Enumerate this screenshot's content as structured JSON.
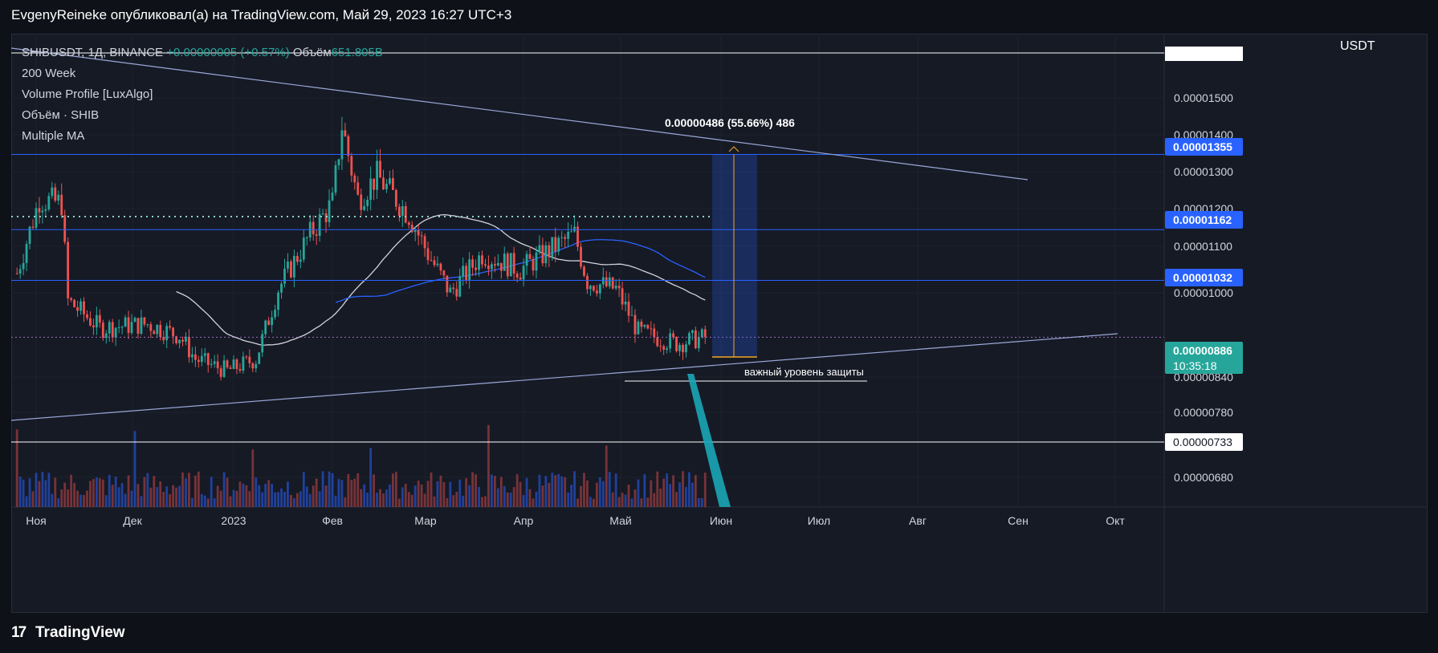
{
  "header": {
    "title": "EvgenyReineke опубликовал(а) на TradingView.com, Май 29, 2023 16:27 UTC+3"
  },
  "legend": {
    "symbol": "SHIBUSDT, 1Д, BINANCE",
    "change": "+0.00000005 (+0.57%)",
    "volume_label": "Объём",
    "volume_value": "651.805B",
    "indicators": [
      "200 Week",
      "Volume Profile [LuxAlgo]",
      "Объём · SHIB",
      "Multiple MA"
    ]
  },
  "price_axis": {
    "currency": "USDT",
    "ticks": [
      "0.00001500",
      "0.00001400",
      "0.00001300",
      "0.00001200",
      "0.00001100",
      "0.00001000",
      "0.00000840",
      "0.00000780",
      "0.00000680"
    ],
    "badges": [
      {
        "label": "0.00001355",
        "style": "blue"
      },
      {
        "label": "0.00001162",
        "style": "blue"
      },
      {
        "label": "0.00001032",
        "style": "blue"
      },
      {
        "label": "0.00000886",
        "style": "teal",
        "sub": "10:35:18"
      },
      {
        "label": "0.00000733",
        "style": "white"
      }
    ]
  },
  "time_axis": [
    "Ноя",
    "Дек",
    "2023",
    "Фев",
    "Мар",
    "Апр",
    "Май",
    "Июн",
    "Июл",
    "Авг",
    "Сен",
    "Окт"
  ],
  "annotations": {
    "measure": "0.00000486 (55.66%) 486",
    "support": "важный уровень защиты"
  },
  "footer": {
    "brand": "TradingView"
  },
  "colors": {
    "up": "#26a69a",
    "down": "#ef5350",
    "level": "#2962ff",
    "ma_white": "#d1d4dc",
    "ma_blue": "#2962ff",
    "bg": "#161a25"
  },
  "chart_data": {
    "type": "candlestick",
    "title": "SHIBUSDT, 1Д, BINANCE",
    "ylim": [
      6.5e-06,
      1.65e-05
    ],
    "horizontal_levels": [
      1.355e-05,
      1.162e-05,
      1.032e-05,
      8.86e-06,
      7.33e-06
    ],
    "anchors": [
      {
        "date": "2022-10-25",
        "price": 1.05e-05
      },
      {
        "date": "2022-11-01",
        "price": 1.24e-05
      },
      {
        "date": "2022-11-08",
        "price": 1.23e-05
      },
      {
        "date": "2022-11-10",
        "price": 9.8e-06
      },
      {
        "date": "2022-11-20",
        "price": 9.1e-06
      },
      {
        "date": "2022-12-05",
        "price": 9.2e-06
      },
      {
        "date": "2022-12-15",
        "price": 8.9e-06
      },
      {
        "date": "2022-12-20",
        "price": 8.3e-06
      },
      {
        "date": "2022-12-30",
        "price": 8e-06
      },
      {
        "date": "2023-01-08",
        "price": 8.3e-06
      },
      {
        "date": "2023-01-15",
        "price": 1.01e-05
      },
      {
        "date": "2023-01-25",
        "price": 1.15e-05
      },
      {
        "date": "2023-02-01",
        "price": 1.23e-05
      },
      {
        "date": "2023-02-04",
        "price": 1.43e-05
      },
      {
        "date": "2023-02-09",
        "price": 1.24e-05
      },
      {
        "date": "2023-02-15",
        "price": 1.3e-05
      },
      {
        "date": "2023-02-25",
        "price": 1.2e-05
      },
      {
        "date": "2023-03-03",
        "price": 1.1e-05
      },
      {
        "date": "2023-03-10",
        "price": 1e-05
      },
      {
        "date": "2023-03-20",
        "price": 1.1e-05
      },
      {
        "date": "2023-04-01",
        "price": 1.06e-05
      },
      {
        "date": "2023-04-18",
        "price": 1.15e-05
      },
      {
        "date": "2023-04-22",
        "price": 1.03e-05
      },
      {
        "date": "2023-05-01",
        "price": 1.01e-05
      },
      {
        "date": "2023-05-08",
        "price": 9e-06
      },
      {
        "date": "2023-05-20",
        "price": 8.7e-06
      },
      {
        "date": "2023-05-29",
        "price": 8.86e-06
      }
    ]
  }
}
